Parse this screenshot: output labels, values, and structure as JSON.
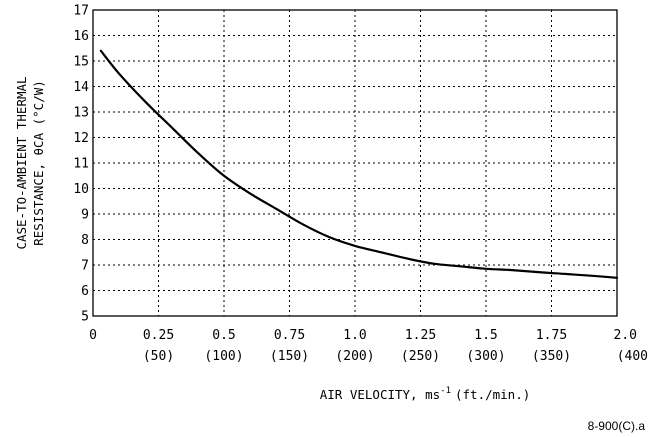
{
  "chart_data": {
    "type": "line",
    "xlabel": "AIR VELOCITY, ms",
    "xlabel_sup": "-1",
    "xlabel_suffix": "(ft./min.)",
    "ylabel_line1": "CASE-TO-AMBIENT THERMAL",
    "ylabel_line2": "RESISTANCE, θCA (°C/W)",
    "figure_code": "8-900(C).a",
    "xlim": [
      0,
      2.0
    ],
    "ylim": [
      5,
      17
    ],
    "grid": true,
    "x_ticks": [
      {
        "value": 0,
        "label": "0",
        "sub": ""
      },
      {
        "value": 0.25,
        "label": "0.25",
        "sub": "(50)"
      },
      {
        "value": 0.5,
        "label": "0.5",
        "sub": "(100)"
      },
      {
        "value": 0.75,
        "label": "0.75",
        "sub": "(150)"
      },
      {
        "value": 1.0,
        "label": "1.0",
        "sub": "(200)"
      },
      {
        "value": 1.25,
        "label": "1.25",
        "sub": "(250)"
      },
      {
        "value": 1.5,
        "label": "1.5",
        "sub": "(300)"
      },
      {
        "value": 1.75,
        "label": "1.75",
        "sub": "(350)"
      },
      {
        "value": 2.0,
        "label": "2.0",
        "sub": "(400"
      }
    ],
    "y_ticks": [
      5,
      6,
      7,
      8,
      9,
      10,
      11,
      12,
      13,
      14,
      15,
      16,
      17
    ],
    "series": [
      {
        "x": [
          0.03,
          0.1,
          0.2,
          0.3,
          0.4,
          0.5,
          0.6,
          0.7,
          0.8,
          0.9,
          1.0,
          1.1,
          1.2,
          1.3,
          1.4,
          1.5,
          1.6,
          1.7,
          1.8,
          1.9,
          2.0
        ],
        "y": [
          15.4,
          14.5,
          13.4,
          12.4,
          11.4,
          10.5,
          9.8,
          9.2,
          8.6,
          8.1,
          7.75,
          7.5,
          7.25,
          7.05,
          6.95,
          6.85,
          6.8,
          6.72,
          6.65,
          6.58,
          6.5
        ]
      }
    ]
  }
}
